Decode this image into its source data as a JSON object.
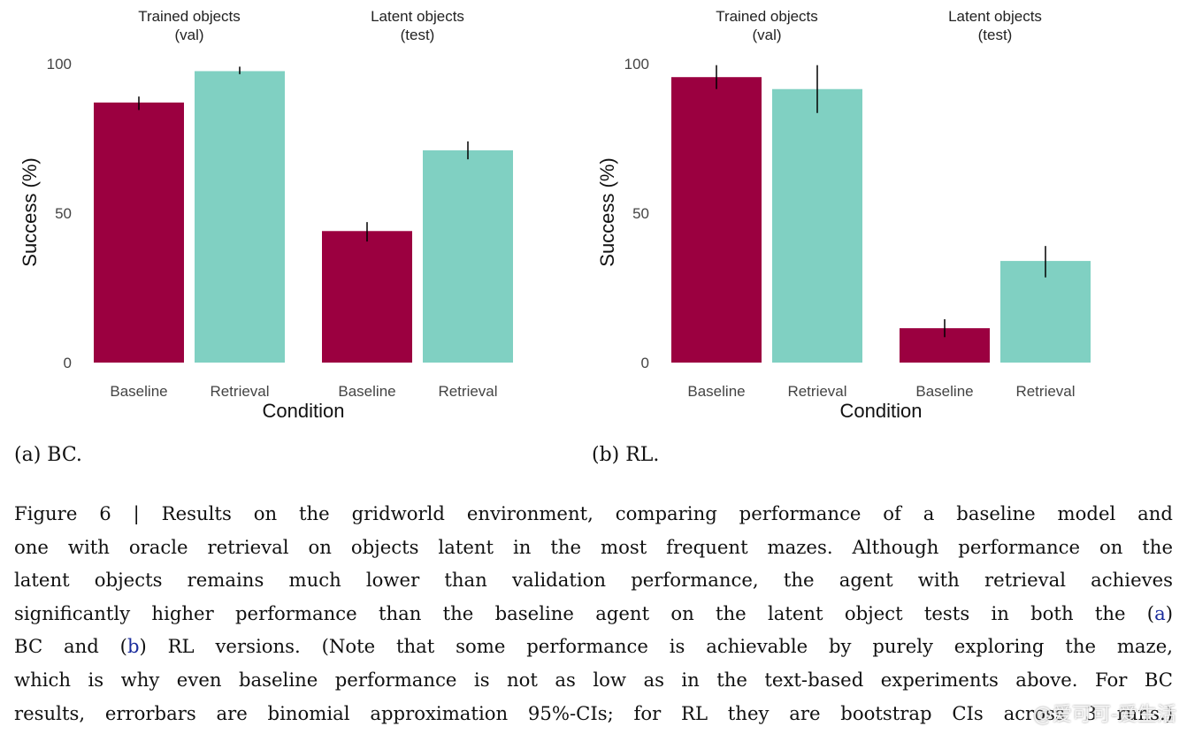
{
  "colors": {
    "baseline": "#9b0040",
    "retrieval": "#80d0c2",
    "errorbar": "#000000",
    "tick": "#444444",
    "reference": "#1a2c9c"
  },
  "chart_data": [
    {
      "id": "panel-a",
      "type": "bar",
      "caption": "(a) BC.",
      "groups": [
        {
          "label": [
            "Trained objects",
            "(val)"
          ]
        },
        {
          "label": [
            "Latent objects",
            "(test)"
          ]
        }
      ],
      "categories": [
        "Baseline",
        "Retrieval",
        "Baseline",
        "Retrieval"
      ],
      "values": [
        87,
        97.5,
        44,
        71
      ],
      "error_low": [
        84.5,
        96.5,
        40.5,
        68
      ],
      "error_high": [
        89,
        99,
        47,
        74
      ],
      "ylabel": "Success (%)",
      "xlabel": "Condition",
      "yticks": [
        0,
        50,
        100
      ],
      "ylim": [
        0,
        100
      ],
      "grid": false
    },
    {
      "id": "panel-b",
      "type": "bar",
      "caption": "(b) RL.",
      "groups": [
        {
          "label": [
            "Trained objects",
            "(val)"
          ]
        },
        {
          "label": [
            "Latent objects",
            "(test)"
          ]
        }
      ],
      "categories": [
        "Baseline",
        "Retrieval",
        "Baseline",
        "Retrieval"
      ],
      "values": [
        95.5,
        91.5,
        11.5,
        34
      ],
      "error_low": [
        91.5,
        83.5,
        8.5,
        28.5
      ],
      "error_high": [
        99.5,
        99.5,
        14.5,
        39
      ],
      "ylabel": "Success (%)",
      "xlabel": "Condition",
      "yticks": [
        0,
        50,
        100
      ],
      "ylim": [
        0,
        100
      ],
      "grid": false
    }
  ],
  "caption": {
    "line1": "Figure 6 | Results on the gridworld environment, comparing performance of a baseline model and",
    "line2": "one with oracle retrieval on objects latent in the most frequent mazes. Although performance on the",
    "line3": "latent objects remains much lower than validation performance, the agent with retrieval achieves",
    "line4a": "significantly higher performance than the baseline agent on the latent object tests in both the (",
    "line4ref": "a",
    "line4b": ")",
    "line5a": "BC and (",
    "line5ref": "b",
    "line5b": ") RL versions. (Note that some performance is achievable by purely exploring the maze,",
    "line6": "which is why even baseline performance is not as low as in the text-based experiments above. For BC",
    "line7": "results, errorbars are binomial approximation 95%-CIs; for RL they are bootstrap CIs across 3 runs.)"
  },
  "watermark": "@爱可可-爱生活"
}
